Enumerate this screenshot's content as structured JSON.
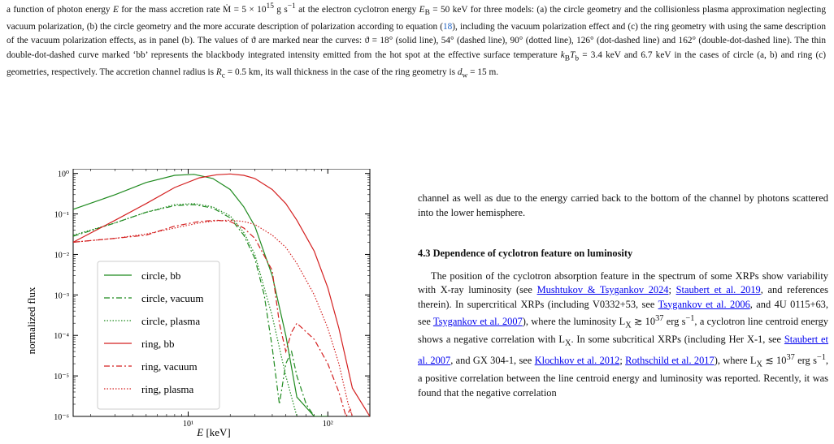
{
  "caption": {
    "prefix": "a function of photon energy ",
    "E": "E",
    "mid1": " for the mass accretion rate ",
    "mdot": "Ṁ = 5 × 10",
    "mdot_exp": "15",
    "mdot_unit": " g s",
    "mdot_unit_exp": "−1",
    "mid2": " at the electron cyclotron energy ",
    "eb": "E",
    "eb_sub": "B",
    "eb_val": " = 50 keV for three models: (a) the circle geometry and the collisionless plasma approximation neglecting vacuum polarization, (b) the circle geometry and the more accurate description of polarization according to equation (",
    "eq_ref": "18",
    "rest1": "), including the vacuum polarization effect and (c) the ring geometry with using the same description of the vacuum polarization effects, as in panel (b). The values of ϑ are marked near the curves: ϑ = 18° (solid line), 54° (dashed line), 90° (dotted line), 126° (dot-dashed line) and 162° (double-dot-dashed line). The thin double-dot-dashed curve marked ‘bb’ represents the blackbody integrated intensity emitted from the hot spot at the effective surface temperature ",
    "kt": "k",
    "kt_sub1": "B",
    "kt_T": "T",
    "kt_sub2": "b",
    "rest2": " = 3.4 keV and 6.7 keV in the cases of circle (a, b) and ring (c) geometries, respectively. The accretion channel radius is ",
    "rc": "R",
    "rc_sub": "c",
    "rest3": " = 0.5 km, its wall thickness in the case of the ring geometry is ",
    "dw": "d",
    "dw_sub": "w",
    "rest4": " = 15 m."
  },
  "figure": {
    "ylabel": "normalized flux",
    "xlabel": "E [keV]",
    "yticks": [
      "10⁰",
      "10⁻¹",
      "10⁻²",
      "10⁻³",
      "10⁻⁴",
      "10⁻⁵",
      "10⁻⁶"
    ],
    "xticks": [
      "10¹",
      "10²"
    ],
    "legend": [
      "circle, bb",
      "circle, vacuum",
      "circle, plasma",
      "ring, bb",
      "ring, vacuum",
      "ring, plasma"
    ],
    "colors": {
      "circle": "#1f8a1f",
      "ring": "#d42020"
    }
  },
  "chart_data": {
    "type": "line",
    "xlabel": "E [keV]",
    "ylabel": "normalized flux",
    "xscale": "log",
    "yscale": "log",
    "xlim": [
      1.5,
      200
    ],
    "ylim": [
      1e-06,
      1.3
    ],
    "legend_placement": "lower-left",
    "series": [
      {
        "name": "circle, bb",
        "x": [
          1.5,
          3,
          5,
          8,
          11,
          15,
          20,
          25,
          30,
          40,
          50,
          60,
          80,
          100
        ],
        "y": [
          0.13,
          0.3,
          0.6,
          0.9,
          0.95,
          0.75,
          0.4,
          0.15,
          0.05,
          0.003,
          0.0001,
          3e-06,
          1e-06,
          1e-06
        ]
      },
      {
        "name": "circle, vacuum",
        "x": [
          1.5,
          3,
          5,
          8,
          11,
          15,
          20,
          25,
          30,
          35,
          40,
          45,
          50,
          55,
          60,
          70,
          80
        ],
        "y": [
          0.028,
          0.06,
          0.11,
          0.16,
          0.17,
          0.14,
          0.08,
          0.03,
          0.008,
          0.001,
          5e-05,
          2e-06,
          2e-05,
          4e-05,
          1e-05,
          2e-06,
          1e-06
        ]
      },
      {
        "name": "circle, plasma",
        "x": [
          1.5,
          3,
          5,
          8,
          11,
          15,
          20,
          25,
          30,
          40,
          50,
          60
        ],
        "y": [
          0.03,
          0.06,
          0.11,
          0.17,
          0.18,
          0.15,
          0.09,
          0.035,
          0.01,
          0.0003,
          1e-05,
          1e-06
        ]
      },
      {
        "name": "ring, bb",
        "x": [
          1.5,
          3,
          5,
          8,
          12,
          16,
          20,
          25,
          30,
          40,
          50,
          60,
          80,
          100,
          120,
          150,
          200
        ],
        "y": [
          0.02,
          0.07,
          0.18,
          0.45,
          0.78,
          0.93,
          0.97,
          0.9,
          0.75,
          0.4,
          0.18,
          0.07,
          0.012,
          0.0015,
          0.00015,
          5e-06,
          1e-06
        ]
      },
      {
        "name": "ring, vacuum",
        "x": [
          1.5,
          3,
          5,
          8,
          12,
          16,
          20,
          25,
          30,
          40,
          45,
          50,
          55,
          60,
          80,
          100,
          120,
          135,
          145,
          150
        ],
        "y": [
          0.02,
          0.025,
          0.03,
          0.05,
          0.065,
          0.07,
          0.065,
          0.045,
          0.025,
          0.004,
          0.0002,
          4e-05,
          0.00012,
          0.0002,
          8e-05,
          2e-05,
          4e-06,
          1e-06,
          1.5e-06,
          1e-06
        ]
      },
      {
        "name": "ring, plasma",
        "x": [
          1.5,
          3,
          5,
          8,
          12,
          16,
          20,
          25,
          30,
          40,
          50,
          60,
          80,
          100,
          120,
          140,
          150
        ],
        "y": [
          0.02,
          0.025,
          0.032,
          0.045,
          0.06,
          0.068,
          0.07,
          0.065,
          0.055,
          0.03,
          0.015,
          0.006,
          0.001,
          0.00015,
          2e-05,
          2e-06,
          1e-06
        ]
      }
    ]
  },
  "body": {
    "para_cont": "channel as well as due to the energy carried back to the bottom of the channel by photons scattered into the lower hemisphere.",
    "section": "4.3 Dependence of cyclotron feature on luminosity",
    "p1a": "The position of the cyclotron absorption feature in the spectrum of some XRPs show variability with X-ray luminosity (see ",
    "ref1": "Mushtukov & Tsygankov 2024",
    "p1b": "; ",
    "ref2": "Staubert et al. 2019",
    "p1c": ", and references therein). In supercritical XRPs (including V0332+53, see ",
    "ref3": "Tsygankov et al. 2006",
    "p1d": ", and 4U 0115+63, see ",
    "ref4": "Tsygankov et al. 2007",
    "p1e": "), where the luminosity L",
    "p1e_sub": "X",
    "p1f": " ≳ 10",
    "p1f_exp": "37",
    "p1g": " erg s",
    "p1g_exp": "−1",
    "p1h": ", a cyclotron line centroid energy shows a negative correlation with L",
    "p1h_sub": "X",
    "p1i": ". In some subcritical XRPs (including Her X-1, see ",
    "ref5": "Staubert et al. 2007",
    "p1j": ", and GX 304-1, see ",
    "ref6": "Klochkov et al. 2012",
    "p1k": "; ",
    "ref7": "Rothschild et al. 2017",
    "p1l": "), where L",
    "p1l_sub": "X",
    "p1m": " ≲ 10",
    "p1m_exp": "37",
    "p1n": " erg s",
    "p1n_exp": "−1",
    "p1o": ", a positive correlation between the line centroid energy and luminosity was reported. Recently, it was found that the negative correlation"
  }
}
